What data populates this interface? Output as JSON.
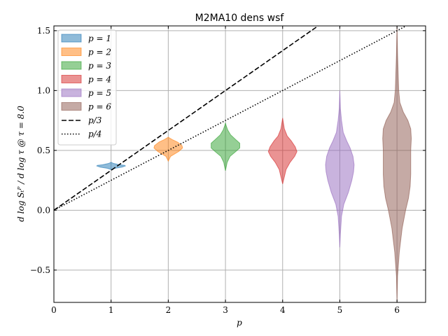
{
  "chart_data": {
    "type": "violin",
    "title": "M2MA10 dens wsf",
    "xlabel": "p",
    "ylabel": "d log Sₜᴾ / d log τ @ τ = 8.0",
    "xlim": [
      0,
      6.5
    ],
    "ylim": [
      -0.77,
      1.54
    ],
    "xticks": [
      0,
      1,
      2,
      3,
      4,
      5,
      6
    ],
    "xtick_labels": [
      "0",
      "1",
      "2",
      "3",
      "4",
      "5",
      "6"
    ],
    "yticks": [
      -0.5,
      0.0,
      0.5,
      1.0,
      1.5
    ],
    "ytick_labels": [
      "−0.5",
      "0.0",
      "0.5",
      "1.0",
      "1.5"
    ],
    "grid": true,
    "legend_position": "top-left",
    "series": [
      {
        "name": "p = 1",
        "p": 1,
        "color": "#1f77b4",
        "profile": [
          [
            0.34,
            0.0
          ],
          [
            0.35,
            0.06
          ],
          [
            0.36,
            0.19
          ],
          [
            0.37,
            0.25
          ],
          [
            0.375,
            0.24
          ],
          [
            0.38,
            0.15
          ],
          [
            0.39,
            0.05
          ],
          [
            0.4,
            0.0
          ]
        ]
      },
      {
        "name": "p = 2",
        "p": 2,
        "color": "#ff7f0e",
        "profile": [
          [
            0.41,
            0.0
          ],
          [
            0.45,
            0.04
          ],
          [
            0.49,
            0.18
          ],
          [
            0.52,
            0.25
          ],
          [
            0.54,
            0.24
          ],
          [
            0.57,
            0.16
          ],
          [
            0.59,
            0.07
          ],
          [
            0.61,
            0.0
          ]
        ]
      },
      {
        "name": "p = 3",
        "p": 3,
        "color": "#2ca02c",
        "profile": [
          [
            0.33,
            0.0
          ],
          [
            0.4,
            0.03
          ],
          [
            0.45,
            0.08
          ],
          [
            0.49,
            0.18
          ],
          [
            0.52,
            0.25
          ],
          [
            0.56,
            0.25
          ],
          [
            0.59,
            0.18
          ],
          [
            0.63,
            0.09
          ],
          [
            0.67,
            0.04
          ],
          [
            0.71,
            0.01
          ],
          [
            0.73,
            0.0
          ]
        ]
      },
      {
        "name": "p = 4",
        "p": 4,
        "color": "#d62728",
        "profile": [
          [
            0.22,
            0.0
          ],
          [
            0.28,
            0.03
          ],
          [
            0.34,
            0.06
          ],
          [
            0.4,
            0.13
          ],
          [
            0.45,
            0.21
          ],
          [
            0.49,
            0.25
          ],
          [
            0.53,
            0.22
          ],
          [
            0.58,
            0.15
          ],
          [
            0.62,
            0.08
          ],
          [
            0.68,
            0.03
          ],
          [
            0.74,
            0.01
          ],
          [
            0.77,
            0.0
          ]
        ]
      },
      {
        "name": "p = 5",
        "p": 5,
        "color": "#9467bd",
        "profile": [
          [
            -0.31,
            0.0
          ],
          [
            -0.2,
            0.01
          ],
          [
            -0.05,
            0.03
          ],
          [
            0.05,
            0.07
          ],
          [
            0.15,
            0.15
          ],
          [
            0.25,
            0.21
          ],
          [
            0.32,
            0.24
          ],
          [
            0.38,
            0.25
          ],
          [
            0.45,
            0.23
          ],
          [
            0.52,
            0.18
          ],
          [
            0.58,
            0.12
          ],
          [
            0.65,
            0.06
          ],
          [
            0.75,
            0.03
          ],
          [
            0.85,
            0.01
          ],
          [
            1.0,
            0.0
          ]
        ]
      },
      {
        "name": "p = 6",
        "p": 6,
        "color": "#8c564b",
        "profile": [
          [
            -0.77,
            0.0
          ],
          [
            -0.55,
            0.01
          ],
          [
            -0.35,
            0.04
          ],
          [
            -0.15,
            0.09
          ],
          [
            0.0,
            0.15
          ],
          [
            0.1,
            0.2
          ],
          [
            0.2,
            0.23
          ],
          [
            0.3,
            0.24
          ],
          [
            0.4,
            0.24
          ],
          [
            0.5,
            0.24
          ],
          [
            0.6,
            0.25
          ],
          [
            0.68,
            0.24
          ],
          [
            0.75,
            0.19
          ],
          [
            0.82,
            0.11
          ],
          [
            0.9,
            0.05
          ],
          [
            1.0,
            0.03
          ],
          [
            1.15,
            0.02
          ],
          [
            1.3,
            0.01
          ],
          [
            1.54,
            0.0
          ]
        ]
      }
    ],
    "reference_lines": [
      {
        "name": "p/3",
        "style": "dashed",
        "slope": 0.3333
      },
      {
        "name": "p/4",
        "style": "dotted",
        "slope": 0.25
      }
    ]
  }
}
